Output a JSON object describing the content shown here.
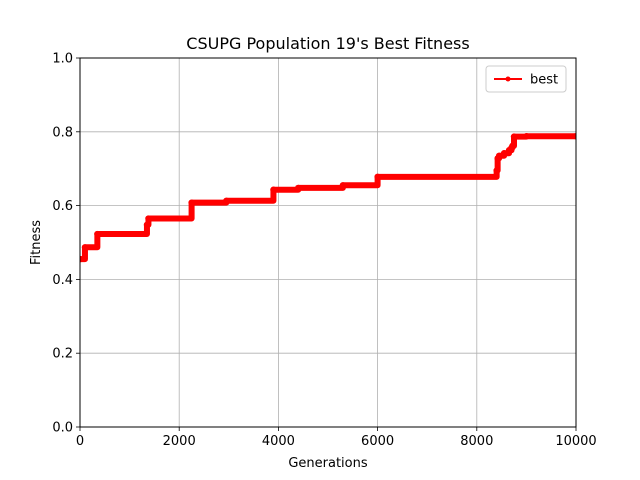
{
  "chart_data": {
    "type": "line",
    "title": "CSUPG Population 19's Best Fitness",
    "xlabel": "Generations",
    "ylabel": "Fitness",
    "xlim": [
      0,
      10000
    ],
    "ylim": [
      0.0,
      1.0
    ],
    "xticks": [
      0,
      2000,
      4000,
      6000,
      8000,
      10000
    ],
    "xtick_labels": [
      "0",
      "2000",
      "4000",
      "6000",
      "8000",
      "10000"
    ],
    "yticks": [
      0.0,
      0.2,
      0.4,
      0.6,
      0.8,
      1.0
    ],
    "ytick_labels": [
      "0.0",
      "0.2",
      "0.4",
      "0.6",
      "0.8",
      "1.0"
    ],
    "grid": true,
    "legend": {
      "position": "top-right",
      "entries": [
        "best"
      ]
    },
    "series": [
      {
        "name": "best",
        "color": "#ff0000",
        "marker": "point",
        "x": [
          0,
          100,
          350,
          1350,
          1380,
          2250,
          2950,
          3900,
          4400,
          5300,
          6000,
          8400,
          8420,
          8450,
          8550,
          8650,
          8700,
          8720,
          8750,
          9000,
          10000
        ],
        "y": [
          0.455,
          0.487,
          0.523,
          0.548,
          0.565,
          0.608,
          0.613,
          0.643,
          0.648,
          0.655,
          0.678,
          0.695,
          0.728,
          0.735,
          0.742,
          0.75,
          0.757,
          0.762,
          0.787,
          0.788,
          0.788
        ]
      }
    ]
  }
}
